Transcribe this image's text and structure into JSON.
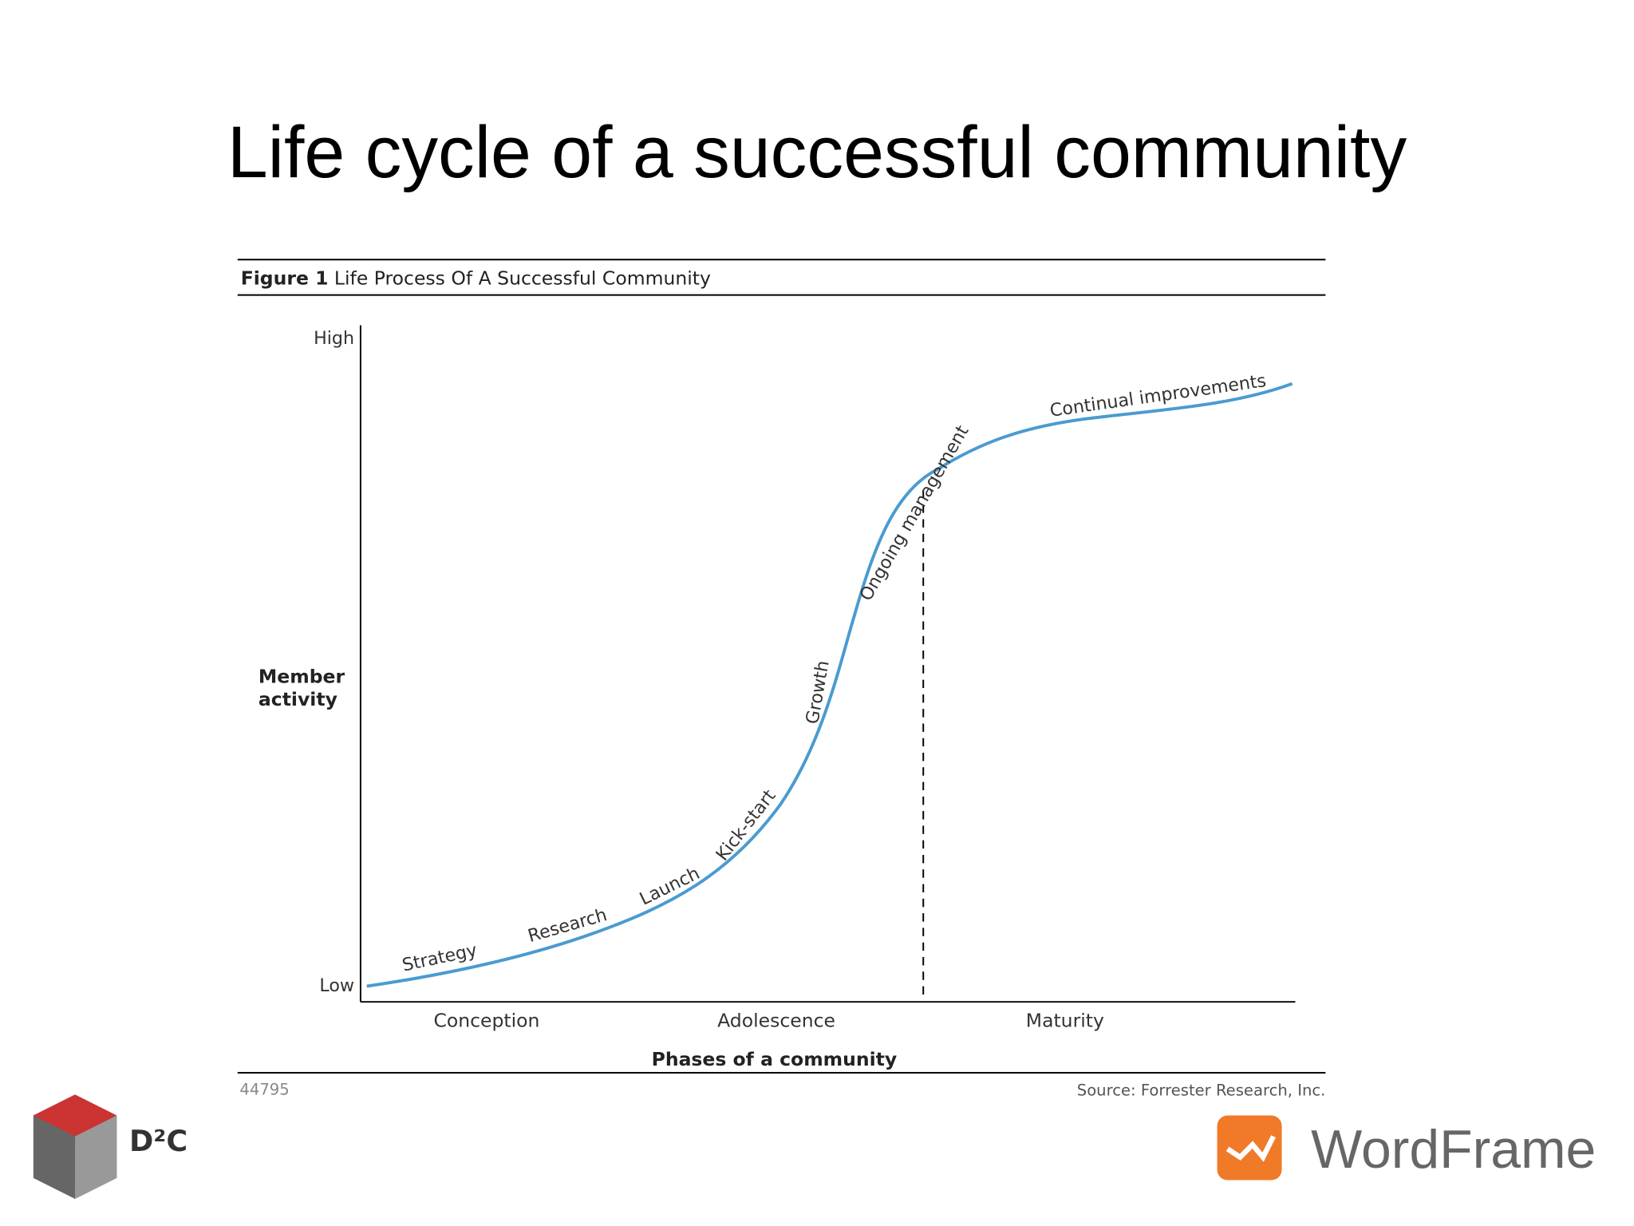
{
  "title": "Life cycle of a successful community",
  "figure": {
    "label": "Figure 1",
    "caption": "Life Process Of A Successful Community",
    "y_axis": {
      "high": "High",
      "low": "Low",
      "label_lines": [
        "Member",
        "activity"
      ]
    },
    "stages": [
      "Strategy",
      "Research",
      "Launch",
      "Kick-start",
      "Growth",
      "Ongoing management",
      "Continual improvements"
    ],
    "phases": [
      "Conception",
      "Adolescence",
      "Maturity"
    ],
    "x_axis_label": "Phases of a community",
    "number": "44795",
    "source": "Source: Forrester Research, Inc."
  },
  "logos": {
    "left": "D²C",
    "right": "WordFrame"
  }
}
